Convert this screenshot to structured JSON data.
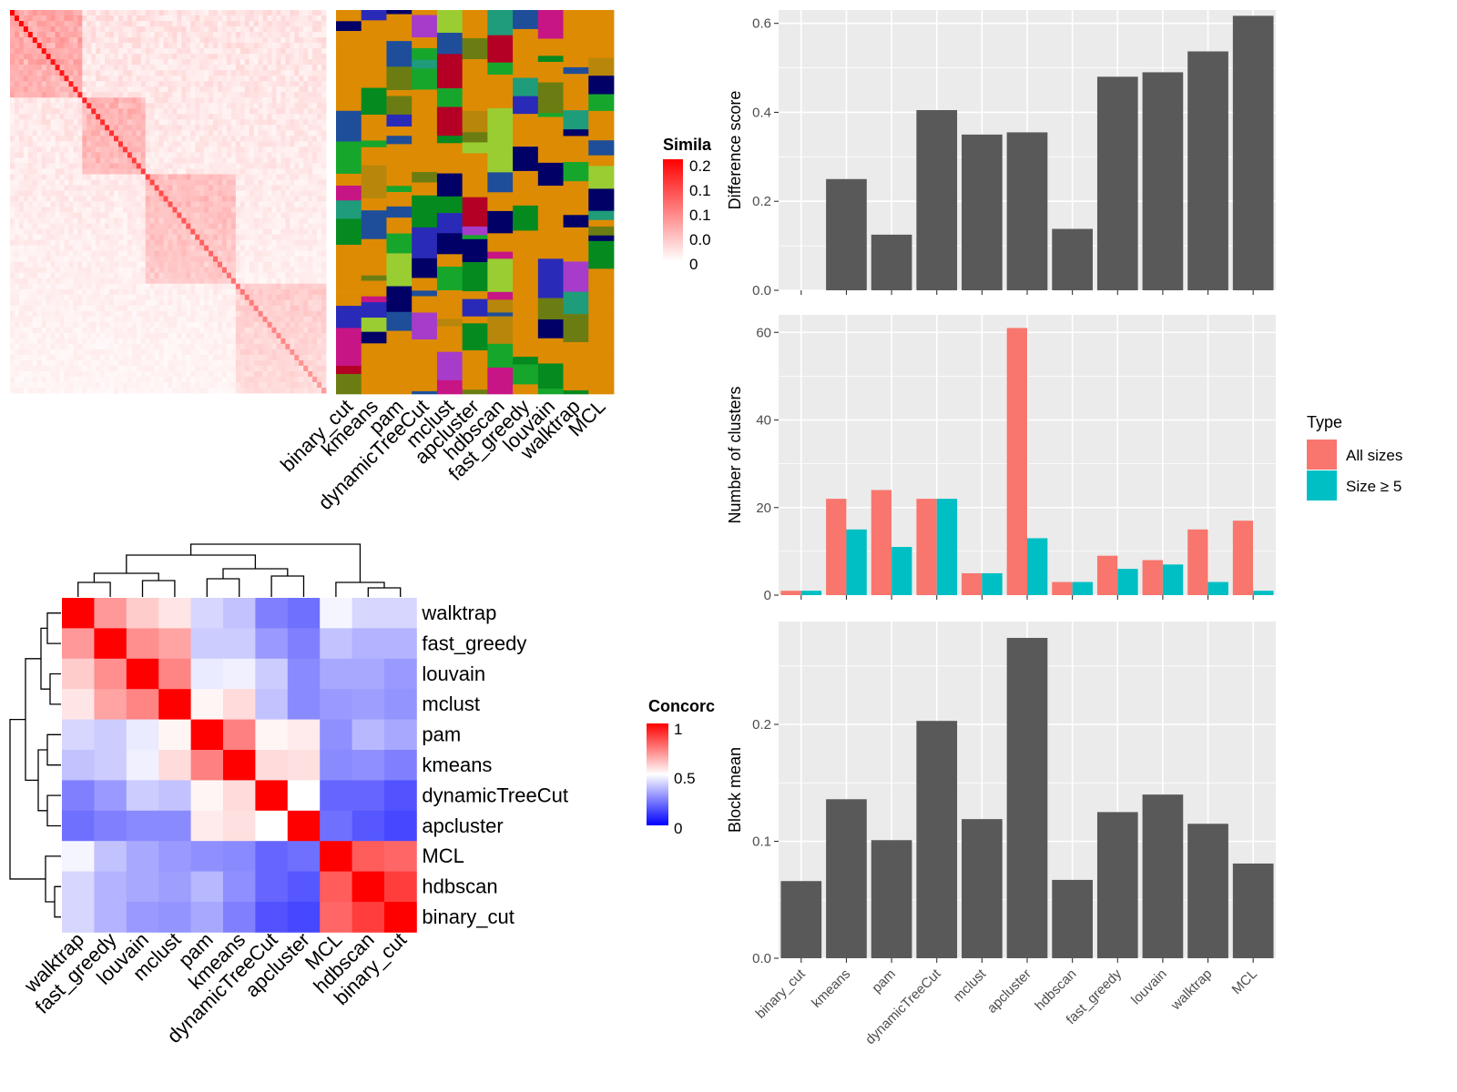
{
  "colors": {
    "panel_bg": "#ebebeb",
    "grid": "#ffffff",
    "bar": "#595959",
    "all_sizes": "#f8766d",
    "size_ge_5": "#00bfc4",
    "heat_high": "#ff0000",
    "heat_mid": "#ffffff",
    "heat_low": "#0000ff"
  },
  "similarity_legend": {
    "title": "Simila",
    "labels": [
      "0.2",
      "0.1",
      "0.1",
      "0.0",
      "0"
    ]
  },
  "concordance_legend": {
    "title": "Concorc",
    "labels": [
      "1",
      "0.5",
      "0"
    ]
  },
  "cluster_label_columns": [
    "binary_cut",
    "kmeans",
    "pam",
    "dynamicTreeCut",
    "mclust",
    "apcluster",
    "hdbscan",
    "fast_greedy",
    "louvain",
    "walktrap",
    "MCL"
  ],
  "chart_data": [
    {
      "type": "heatmap",
      "title": "",
      "rows": [
        "walktrap",
        "fast_greedy",
        "louvain",
        "mclust",
        "pam",
        "kmeans",
        "dynamicTreeCut",
        "apcluster",
        "MCL",
        "hdbscan",
        "binary_cut"
      ],
      "columns": [
        "walktrap",
        "fast_greedy",
        "louvain",
        "mclust",
        "pam",
        "kmeans",
        "dynamicTreeCut",
        "apcluster",
        "MCL",
        "hdbscan",
        "binary_cut"
      ],
      "range": [
        0,
        1
      ],
      "values": [
        [
          1.0,
          0.7,
          0.6,
          0.55,
          0.42,
          0.38,
          0.25,
          0.22,
          0.48,
          0.42,
          0.42
        ],
        [
          0.7,
          1.0,
          0.72,
          0.68,
          0.4,
          0.4,
          0.3,
          0.25,
          0.38,
          0.35,
          0.35
        ],
        [
          0.6,
          0.72,
          1.0,
          0.74,
          0.46,
          0.47,
          0.4,
          0.27,
          0.33,
          0.33,
          0.3
        ],
        [
          0.55,
          0.68,
          0.74,
          1.0,
          0.52,
          0.57,
          0.38,
          0.27,
          0.3,
          0.31,
          0.29
        ],
        [
          0.42,
          0.4,
          0.46,
          0.52,
          1.0,
          0.75,
          0.52,
          0.54,
          0.28,
          0.36,
          0.33
        ],
        [
          0.38,
          0.4,
          0.47,
          0.57,
          0.75,
          1.0,
          0.57,
          0.56,
          0.27,
          0.28,
          0.25
        ],
        [
          0.25,
          0.3,
          0.4,
          0.38,
          0.52,
          0.57,
          1.0,
          0.5,
          0.2,
          0.2,
          0.16
        ],
        [
          0.22,
          0.25,
          0.27,
          0.27,
          0.54,
          0.56,
          0.5,
          1.0,
          0.22,
          0.17,
          0.14
        ],
        [
          0.48,
          0.38,
          0.33,
          0.3,
          0.28,
          0.27,
          0.2,
          0.22,
          1.0,
          0.82,
          0.8
        ],
        [
          0.42,
          0.35,
          0.33,
          0.31,
          0.36,
          0.28,
          0.2,
          0.17,
          0.82,
          1.0,
          0.88
        ],
        [
          0.42,
          0.35,
          0.3,
          0.29,
          0.33,
          0.25,
          0.16,
          0.14,
          0.8,
          0.88,
          1.0
        ]
      ]
    },
    {
      "type": "bar",
      "title": "",
      "xlabel": "",
      "ylabel": "Difference score",
      "categories": [
        "binary_cut",
        "kmeans",
        "pam",
        "dynamicTreeCut",
        "mclust",
        "apcluster",
        "hdbscan",
        "fast_greedy",
        "louvain",
        "walktrap",
        "MCL"
      ],
      "values": [
        0,
        0.25,
        0.125,
        0.405,
        0.35,
        0.355,
        0.138,
        0.48,
        0.49,
        0.537,
        0.617
      ],
      "ylim": [
        0,
        0.63
      ],
      "yticks": [
        "0.0",
        "0.2",
        "0.4",
        "0.6"
      ],
      "grid": true
    },
    {
      "type": "bar",
      "title": "",
      "xlabel": "",
      "ylabel": "Number of clusters",
      "categories": [
        "binary_cut",
        "kmeans",
        "pam",
        "dynamicTreeCut",
        "mclust",
        "apcluster",
        "hdbscan",
        "fast_greedy",
        "louvain",
        "walktrap",
        "MCL"
      ],
      "series": [
        {
          "name": "All sizes",
          "values": [
            1,
            22,
            24,
            22,
            5,
            61,
            3,
            9,
            8,
            15,
            17
          ]
        },
        {
          "name": "Size ≥ 5",
          "values": [
            1,
            15,
            11,
            22,
            5,
            13,
            3,
            6,
            7,
            3,
            1
          ]
        }
      ],
      "ylim": [
        0,
        64
      ],
      "yticks": [
        "0",
        "20",
        "40",
        "60"
      ],
      "legend": {
        "title": "Type",
        "position": "right"
      },
      "grid": true
    },
    {
      "type": "bar",
      "title": "",
      "xlabel": "",
      "ylabel": "Block mean",
      "categories": [
        "binary_cut",
        "kmeans",
        "pam",
        "dynamicTreeCut",
        "mclust",
        "apcluster",
        "hdbscan",
        "fast_greedy",
        "louvain",
        "walktrap",
        "MCL"
      ],
      "values": [
        0.066,
        0.136,
        0.101,
        0.203,
        0.119,
        0.274,
        0.067,
        0.125,
        0.14,
        0.115,
        0.081
      ],
      "ylim": [
        0,
        0.288
      ],
      "yticks": [
        "0.0",
        "0.1",
        "0.2"
      ],
      "grid": true
    }
  ]
}
